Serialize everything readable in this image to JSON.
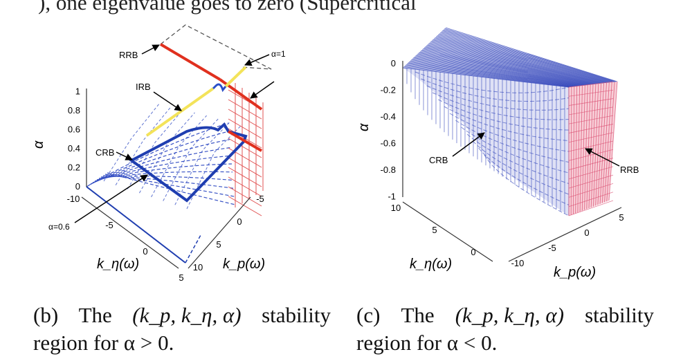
{
  "cropped_top_text": "), one eigenvalue goes to zero (Supercritical",
  "figures": [
    {
      "id": "b",
      "caption": {
        "label": "(b)",
        "words": [
          "The",
          "(k_p, k_η, α)",
          "stability"
        ],
        "line2": "region for α > 0."
      }
    },
    {
      "id": "c",
      "caption": {
        "label": "(c)",
        "words": [
          "The",
          "(k_p, k_η, α)",
          "stability"
        ],
        "line2": "region for α < 0."
      }
    }
  ],
  "chart_data": [
    {
      "type": "surface3d",
      "title": "The (k_p, k_η, α) stability region for α > 0",
      "zlabel": "α",
      "xlabel": "k_p(ω)",
      "ylabel": "k_η(ω)",
      "z_ticks": [
        "0",
        "0.2",
        "0.4",
        "0.6",
        "0.8",
        "1"
      ],
      "x_ticks": [
        "-5",
        "0",
        "5",
        "10"
      ],
      "y_ticks": [
        "-10",
        "-5",
        "0",
        "5"
      ],
      "zlim": [
        0,
        1
      ],
      "annotations": [
        "RRB",
        "IRB",
        "CRB",
        "α=1",
        "α=0.6"
      ],
      "colors": {
        "surface": "#2b3fb8",
        "crb": "#1f3eb0",
        "irb": "#f3e35a",
        "rrb": "#e0301e",
        "rrb_mesh": "#e05050"
      }
    },
    {
      "type": "surface3d",
      "title": "The (k_p, k_η, α) stability region for α < 0",
      "zlabel": "α",
      "xlabel": "k_p(ω)",
      "ylabel": "k_η(ω)",
      "z_ticks": [
        "0",
        "-0.2",
        "-0.4",
        "-0.6",
        "-0.8",
        "-1"
      ],
      "x_ticks": [
        "-10",
        "-5",
        "0",
        "5"
      ],
      "y_ticks": [
        "10",
        "5",
        "0"
      ],
      "zlim": [
        -1,
        0
      ],
      "annotations": [
        "CRB",
        "RRB"
      ],
      "colors": {
        "surface": "#2b3fb8",
        "rrb": "#e86a8a"
      }
    }
  ]
}
